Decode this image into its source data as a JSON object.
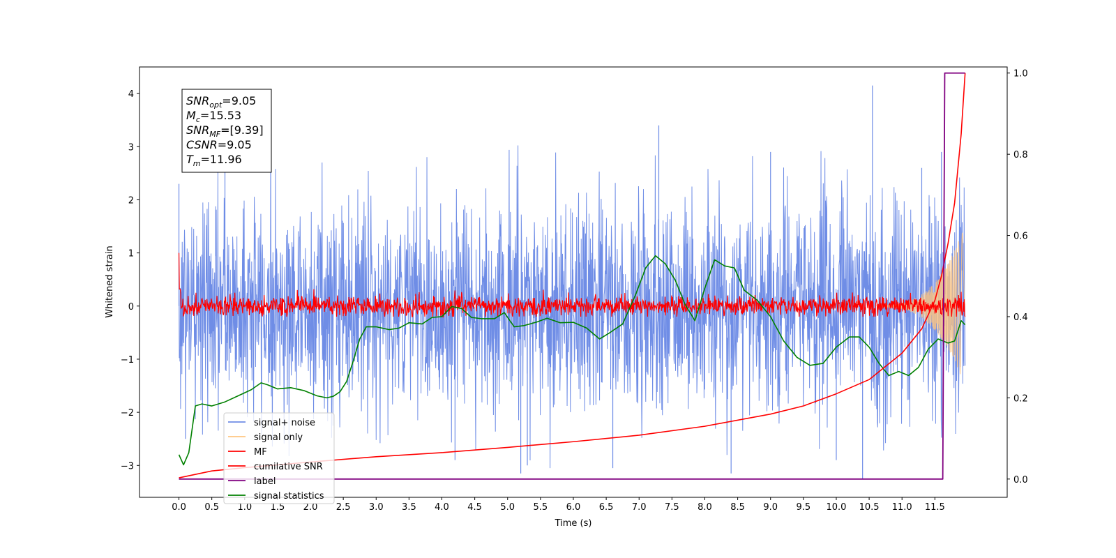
{
  "chart_data": {
    "type": "line",
    "xlabel": "Time (s)",
    "ylabel": "Whitened strain",
    "xlim": [
      -0.6,
      12.6
    ],
    "ylim": [
      -3.6,
      4.5
    ],
    "y2lim": [
      -0.045,
      1.015
    ],
    "x_ticks": [
      0,
      0.5,
      1,
      1.5,
      2,
      2.5,
      3,
      3.5,
      4,
      4.5,
      5,
      5.5,
      6,
      6.5,
      7,
      7.5,
      8,
      8.5,
      9,
      9.5,
      10,
      10.5,
      11,
      11.5
    ],
    "x_tick_labels": [
      "0.0",
      "0.5",
      "1.0",
      "1.5",
      "2.0",
      "2.5",
      "3.0",
      "3.5",
      "4.0",
      "4.5",
      "5.0",
      "5.5",
      "6.0",
      "6.5",
      "7.0",
      "7.5",
      "8.0",
      "8.5",
      "9.0",
      "9.5",
      "10.0",
      "10.5",
      "11.0",
      "11.5"
    ],
    "y_ticks": [
      -3,
      -2,
      -1,
      0,
      1,
      2,
      3,
      4
    ],
    "y_tick_labels": [
      "−3",
      "−2",
      "−1",
      "0",
      "1",
      "2",
      "3",
      "4"
    ],
    "y2_ticks": [
      0,
      0.2,
      0.4,
      0.6,
      0.8,
      1.0
    ],
    "y2_tick_labels": [
      "0.0",
      "0.2",
      "0.4",
      "0.6",
      "0.8",
      "1.0"
    ],
    "grid": false,
    "legend_position": "lower-left",
    "info_box": {
      "lines": [
        {
          "main": "SNR",
          "sub": "opt",
          "value": "=9.05"
        },
        {
          "main": "M",
          "sub": "c",
          "value": "=15.53"
        },
        {
          "main": "SNR",
          "sub": "MF",
          "value": "=[9.39]"
        },
        {
          "main": "CSNR",
          "sub": "",
          "value": "=9.05"
        },
        {
          "main": "T",
          "sub": "m",
          "value": "=11.96"
        }
      ]
    },
    "series": [
      {
        "name": "signal+ noise",
        "color": "#6f8de6",
        "axis": "left",
        "duration": 11.96,
        "typical_amplitude": 1.0,
        "min": -3.25,
        "max": 4.15,
        "spikes": [
          [
            0.0,
            2.3
          ],
          [
            0.1,
            -2.5
          ],
          [
            0.7,
            2.6
          ],
          [
            4.2,
            -2.9
          ],
          [
            5.2,
            -3.15
          ],
          [
            5.3,
            -3.0
          ],
          [
            6.6,
            -3.05
          ],
          [
            7.3,
            3.4
          ],
          [
            8.4,
            -3.15
          ],
          [
            9.0,
            2.9
          ],
          [
            10.0,
            -2.9
          ],
          [
            10.4,
            -3.25
          ],
          [
            10.55,
            4.15
          ],
          [
            11.3,
            2.6
          ],
          [
            11.6,
            2.9
          ]
        ]
      },
      {
        "name": "signal only",
        "color": "#ffc680",
        "axis": "left",
        "chirp_start": 10.6,
        "chirp_end": 11.96,
        "peak_amplitude": 1.5
      },
      {
        "name": "MF",
        "color": "#ff0000",
        "axis": "left",
        "typical_amplitude": 0.12,
        "start_value": 1.0
      },
      {
        "name": "cumilative SNR",
        "color": "#ff0000",
        "axis": "right",
        "x": [
          0.0,
          0.5,
          1.0,
          2.0,
          3.0,
          4.0,
          5.0,
          6.0,
          7.0,
          8.0,
          9.0,
          9.5,
          10.0,
          10.5,
          11.0,
          11.3,
          11.5,
          11.6,
          11.7,
          11.8,
          11.9,
          11.96
        ],
        "y": [
          0.003,
          0.02,
          0.028,
          0.042,
          0.055,
          0.065,
          0.078,
          0.092,
          0.108,
          0.13,
          0.16,
          0.18,
          0.21,
          0.245,
          0.31,
          0.37,
          0.44,
          0.5,
          0.58,
          0.68,
          0.85,
          1.0
        ]
      },
      {
        "name": "label",
        "color": "#800080",
        "axis": "right",
        "x": [
          0.0,
          11.62,
          11.65,
          11.96
        ],
        "y": [
          0.0,
          0.0,
          1.0,
          1.0
        ]
      },
      {
        "name": "signal statistics",
        "color": "#008000",
        "axis": "right",
        "x": [
          0.0,
          0.07,
          0.15,
          0.25,
          0.35,
          0.5,
          0.7,
          0.9,
          1.1,
          1.25,
          1.35,
          1.5,
          1.7,
          1.9,
          2.1,
          2.25,
          2.35,
          2.45,
          2.55,
          2.65,
          2.75,
          2.85,
          3.0,
          3.2,
          3.35,
          3.5,
          3.7,
          3.85,
          4.0,
          4.15,
          4.3,
          4.45,
          4.6,
          4.8,
          4.95,
          5.1,
          5.25,
          5.45,
          5.6,
          5.8,
          6.0,
          6.2,
          6.4,
          6.55,
          6.75,
          6.95,
          7.1,
          7.25,
          7.4,
          7.55,
          7.7,
          7.85,
          8.0,
          8.15,
          8.3,
          8.45,
          8.6,
          8.8,
          9.0,
          9.2,
          9.4,
          9.6,
          9.8,
          10.0,
          10.2,
          10.35,
          10.5,
          10.65,
          10.8,
          10.95,
          11.1,
          11.25,
          11.4,
          11.55,
          11.7,
          11.8,
          11.9,
          11.96
        ],
        "y": [
          0.06,
          0.035,
          0.065,
          0.18,
          0.185,
          0.18,
          0.19,
          0.205,
          0.22,
          0.237,
          0.232,
          0.222,
          0.225,
          0.218,
          0.205,
          0.2,
          0.204,
          0.215,
          0.24,
          0.29,
          0.345,
          0.375,
          0.375,
          0.368,
          0.372,
          0.385,
          0.382,
          0.398,
          0.4,
          0.425,
          0.42,
          0.398,
          0.395,
          0.395,
          0.41,
          0.375,
          0.378,
          0.387,
          0.396,
          0.385,
          0.386,
          0.372,
          0.345,
          0.36,
          0.382,
          0.455,
          0.52,
          0.55,
          0.53,
          0.49,
          0.43,
          0.39,
          0.47,
          0.54,
          0.525,
          0.52,
          0.465,
          0.44,
          0.4,
          0.34,
          0.3,
          0.28,
          0.285,
          0.325,
          0.35,
          0.35,
          0.325,
          0.285,
          0.255,
          0.265,
          0.255,
          0.275,
          0.32,
          0.345,
          0.335,
          0.34,
          0.39,
          0.38
        ]
      }
    ]
  }
}
